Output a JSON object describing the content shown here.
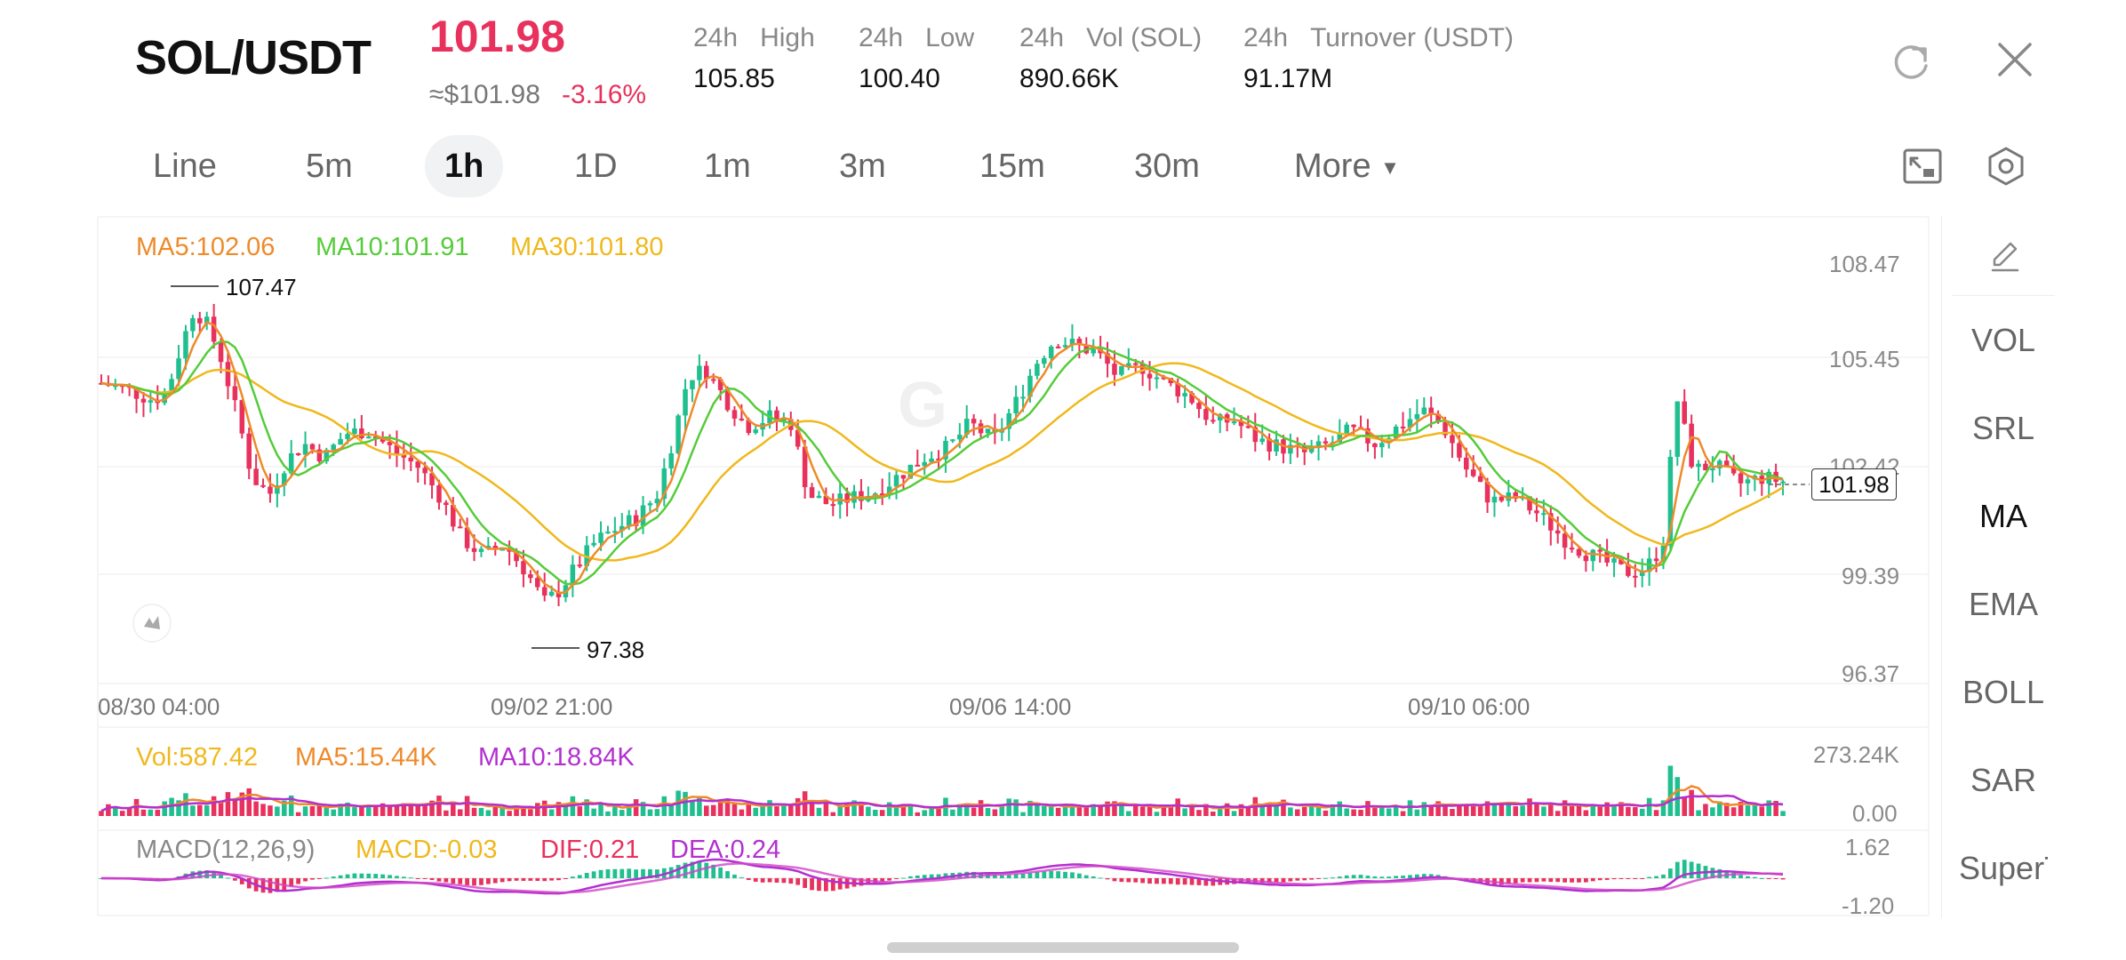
{
  "header": {
    "pair": "SOL/USDT",
    "last_price": "101.98",
    "fiat_price": "≈$101.98",
    "change_pct": "-3.16%",
    "stats": [
      {
        "label_a": "24h",
        "label_b": "High",
        "value": "105.85"
      },
      {
        "label_a": "24h",
        "label_b": "Low",
        "value": "100.40"
      },
      {
        "label_a": "24h",
        "label_b": "Vol (SOL)",
        "value": "890.66K"
      },
      {
        "label_a": "24h",
        "label_b": "Turnover (USDT)",
        "value": "91.17M"
      }
    ],
    "icons": {
      "refresh": "refresh-icon",
      "close": "close-icon"
    }
  },
  "intervals": {
    "tabs": [
      "Line",
      "5m",
      "1h",
      "1D",
      "1m",
      "3m",
      "15m",
      "30m",
      "More"
    ],
    "active": "1h",
    "icons": {
      "fullscreen": "fullscreen-icon",
      "settings": "settings-icon"
    }
  },
  "indicators": {
    "items": [
      "VOL",
      "SRL",
      "MA",
      "EMA",
      "BOLL",
      "SAR",
      "SuperTr"
    ],
    "active": "MA",
    "icons": {
      "draw": "pencil-icon"
    }
  },
  "main_chart": {
    "legend": [
      {
        "text": "MA5:102.06",
        "color": "#ee8a2a"
      },
      {
        "text": "MA10:101.91",
        "color": "#55cc3a"
      },
      {
        "text": "MA30:101.80",
        "color": "#f0b81c"
      }
    ],
    "y_ticks": [
      "108.47",
      "105.45",
      "102.42",
      "99.39",
      "96.37"
    ],
    "x_ticks": [
      "08/30 04:00",
      "09/02 21:00",
      "09/06 14:00",
      "09/10 06:00"
    ],
    "high_marker": "107.47",
    "low_marker": "97.38",
    "current_price": "101.98"
  },
  "volume_chart": {
    "legend": [
      {
        "text": "Vol:587.42",
        "color": "#f0b81c"
      },
      {
        "text": "MA5:15.44K",
        "color": "#ee8a2a"
      },
      {
        "text": "MA10:18.84K",
        "color": "#b32fd0"
      }
    ],
    "y_ticks": [
      "273.24K",
      "0.00"
    ]
  },
  "macd_chart": {
    "legend": [
      {
        "text": "MACD(12,26,9)",
        "color": "#888888"
      },
      {
        "text": "MACD:-0.03",
        "color": "#f0b81c"
      },
      {
        "text": "DIF:0.21",
        "color": "#e8315c"
      },
      {
        "text": "DEA:0.24",
        "color": "#b32fd0"
      }
    ],
    "y_ticks": [
      "1.62",
      "-1.20"
    ]
  },
  "chart_data": {
    "type": "candlestick",
    "pair": "SOL/USDT",
    "interval": "1h",
    "x_ticks": [
      "08/30 04:00",
      "09/02 21:00",
      "09/06 14:00",
      "09/10 06:00"
    ],
    "y_ticks": [
      108.47,
      105.45,
      102.42,
      99.39,
      96.37
    ],
    "ylim": [
      96.37,
      108.47
    ],
    "close_trend": [
      [
        0,
        104.9
      ],
      [
        15,
        104.7
      ],
      [
        30,
        104.4
      ],
      [
        38,
        104.6
      ],
      [
        46,
        105.9
      ],
      [
        54,
        107.1
      ],
      [
        62,
        106.6
      ],
      [
        70,
        105.6
      ],
      [
        80,
        103.8
      ],
      [
        88,
        102.1
      ],
      [
        98,
        101.6
      ],
      [
        108,
        102.6
      ],
      [
        118,
        103.1
      ],
      [
        130,
        102.7
      ],
      [
        142,
        103.4
      ],
      [
        155,
        103.5
      ],
      [
        170,
        102.9
      ],
      [
        185,
        102.4
      ],
      [
        198,
        101.5
      ],
      [
        210,
        100.3
      ],
      [
        222,
        99.8
      ],
      [
        235,
        100.1
      ],
      [
        248,
        99.3
      ],
      [
        258,
        98.4
      ],
      [
        266,
        98.7
      ],
      [
        276,
        99.4
      ],
      [
        288,
        100.2
      ],
      [
        300,
        100.6
      ],
      [
        312,
        100.9
      ],
      [
        324,
        101.6
      ],
      [
        334,
        103.4
      ],
      [
        342,
        105.1
      ],
      [
        352,
        105.3
      ],
      [
        364,
        104.4
      ],
      [
        376,
        103.6
      ],
      [
        390,
        103.9
      ],
      [
        402,
        103.7
      ],
      [
        412,
        101.6
      ],
      [
        424,
        101.3
      ],
      [
        438,
        101.5
      ],
      [
        452,
        101.7
      ],
      [
        466,
        102.2
      ],
      [
        480,
        102.7
      ],
      [
        494,
        103.0
      ],
      [
        506,
        103.7
      ],
      [
        520,
        103.2
      ],
      [
        534,
        104.4
      ],
      [
        546,
        105.6
      ],
      [
        556,
        106.2
      ],
      [
        568,
        106.0
      ],
      [
        580,
        105.8
      ],
      [
        592,
        105.1
      ],
      [
        606,
        105.4
      ],
      [
        620,
        104.9
      ],
      [
        634,
        104.5
      ],
      [
        648,
        103.7
      ],
      [
        660,
        103.8
      ],
      [
        674,
        103.2
      ],
      [
        688,
        103.0
      ],
      [
        702,
        102.8
      ],
      [
        716,
        103.1
      ],
      [
        728,
        103.5
      ],
      [
        742,
        103.1
      ],
      [
        756,
        103.6
      ],
      [
        770,
        104.1
      ],
      [
        782,
        103.6
      ],
      [
        796,
        102.3
      ],
      [
        810,
        101.4
      ],
      [
        824,
        101.5
      ],
      [
        838,
        101.0
      ],
      [
        852,
        100.3
      ],
      [
        864,
        99.9
      ],
      [
        876,
        99.6
      ],
      [
        888,
        99.3
      ],
      [
        900,
        99.4
      ],
      [
        910,
        100.1
      ],
      [
        918,
        104.5
      ],
      [
        928,
        102.3
      ],
      [
        940,
        102.5
      ],
      [
        954,
        101.9
      ],
      [
        968,
        102.1
      ],
      [
        980,
        101.98
      ]
    ],
    "current_price": 101.98,
    "high_marker": 107.47,
    "low_marker": 97.38,
    "ma": {
      "MA5": 102.06,
      "MA10": 101.91,
      "MA30": 101.8
    },
    "volume": {
      "Vol": "587.42",
      "MA5": "15.44K",
      "MA10": "18.84K",
      "ylim": [
        "0.00",
        "273.24K"
      ]
    },
    "macd": {
      "params": "12,26,9",
      "MACD": -0.03,
      "DIF": 0.21,
      "DEA": 0.24,
      "ylim": [
        -1.2,
        1.62
      ]
    }
  }
}
